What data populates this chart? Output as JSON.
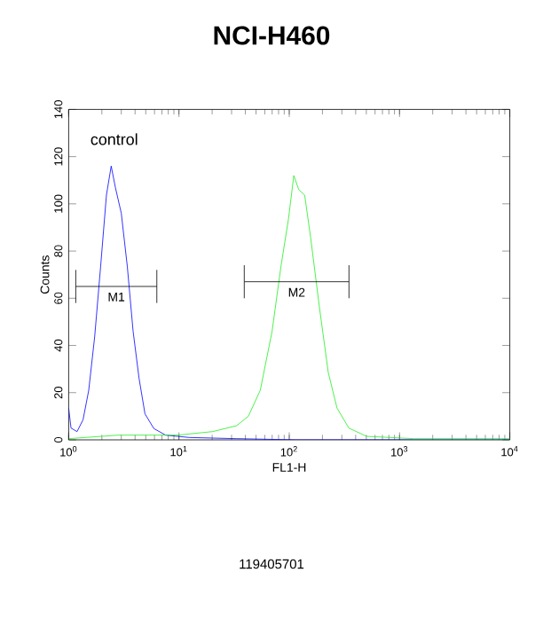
{
  "chart_data": {
    "type": "line",
    "title": "NCI-H460",
    "xlabel": "FL1-H",
    "ylabel": "Counts",
    "log": "x",
    "grid": false,
    "xlim": [
      1,
      10000
    ],
    "ylim": [
      0,
      140
    ],
    "xticks": [
      {
        "value": 1,
        "label": "10$^{0}$"
      },
      {
        "value": 10,
        "label": "10$^{1}$"
      },
      {
        "value": 100,
        "label": "10$^{2}$"
      },
      {
        "value": 1000,
        "label": "10$^{3}$"
      },
      {
        "value": 10000,
        "label": "10$^{4}$"
      }
    ],
    "yticks": [
      0,
      20,
      40,
      60,
      80,
      100,
      120,
      140
    ],
    "series": [
      {
        "color": "#0000ff",
        "x": [
          1,
          1.05,
          1.19,
          1.35,
          1.52,
          1.72,
          1.95,
          2.2,
          2.43,
          2.65,
          3.0,
          3.4,
          3.84,
          4.35,
          4.92,
          5.92,
          7.57,
          12.4,
          33.3,
          115,
          10000
        ],
        "values": [
          13.5,
          5,
          3.5,
          8.5,
          21,
          43.6,
          73.6,
          103.7,
          116,
          107,
          96,
          73.6,
          46,
          26,
          11,
          4.8,
          2,
          1,
          0.5,
          0,
          0
        ]
      },
      {
        "color": "#22ee22",
        "x": [
          1,
          2.82,
          9.7,
          20.2,
          33.3,
          42.6,
          54.6,
          69.9,
          84.2,
          98.5,
          110,
          122,
          138,
          156,
          188,
          226,
          271,
          347,
          502,
          1350,
          10000
        ],
        "values": [
          0.5,
          2,
          2,
          3.5,
          6,
          10,
          21,
          46,
          73.6,
          93.7,
          112,
          106,
          103.7,
          86,
          56,
          28.5,
          13.5,
          5,
          1.5,
          0.5,
          0.5
        ]
      },
      {
        "color": "#000000",
        "x": [
          1.16,
          6.3
        ],
        "values": [
          65,
          65
        ],
        "errors": [
          7,
          7
        ]
      },
      {
        "color": "#000000",
        "x": [
          39.1,
          348
        ],
        "values": [
          67,
          67
        ],
        "errors": [
          7,
          7
        ]
      }
    ],
    "annotations": [
      "control",
      "M1",
      "M2",
      "119405701"
    ]
  }
}
